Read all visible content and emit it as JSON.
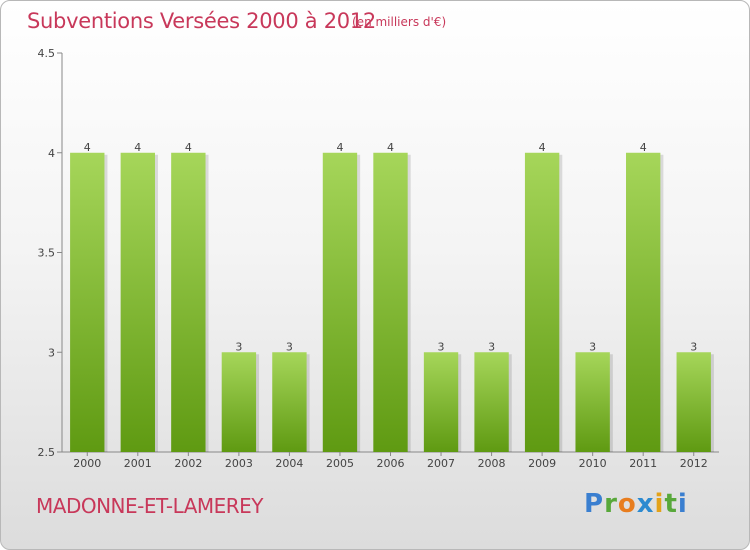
{
  "header": {
    "title": "Subventions Versées 2000 à 2012",
    "unit_note": "(en milliers d'€)"
  },
  "footer": {
    "commune": "MADONNE-ET-LAMEREY",
    "logo_text": "Proxiti"
  },
  "colors": {
    "bar_light": "#a6d65a",
    "bar_dark": "#5f9a12",
    "title": "#c8385a"
  },
  "chart_data": {
    "type": "bar",
    "title": "Subventions Versées 2000 à 2012",
    "categories": [
      "2000",
      "2001",
      "2002",
      "2003",
      "2004",
      "2005",
      "2006",
      "2007",
      "2008",
      "2009",
      "2010",
      "2011",
      "2012"
    ],
    "values": [
      4,
      4,
      4,
      3,
      3,
      4,
      4,
      3,
      3,
      4,
      3,
      4,
      3
    ],
    "data_labels": [
      "4",
      "4",
      "4",
      "3",
      "3",
      "4",
      "4",
      "3",
      "3",
      "4",
      "3",
      "4",
      "3"
    ],
    "ylim": [
      2.5,
      4.5
    ],
    "yticks": [
      2.5,
      3,
      3.5,
      4,
      4.5
    ],
    "ytick_labels": [
      "2.5",
      "3",
      "3.5",
      "4",
      "4.5"
    ],
    "grid": false,
    "xlabel": "",
    "ylabel": ""
  }
}
